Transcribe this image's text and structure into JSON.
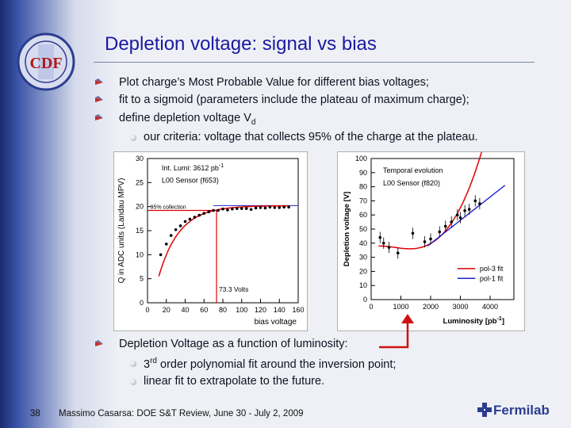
{
  "slide": {
    "title": "Depletion voltage: signal vs bias",
    "logo_text": "CDF",
    "bullets": [
      "Plot charge’s Most Probable Value for different bias voltages;",
      "fit to a sigmoid (parameters include the plateau of maximum charge);",
      "define depletion voltage V"
    ],
    "bullet3_sub": "d",
    "sub_bullet": "our criteria: voltage that collects 95% of the charge at the plateau.",
    "bullet4": "Depletion Voltage as a function of luminosity:",
    "sub_bullet2_sup": "rd",
    "sub_bullet2_a": "3",
    "sub_bullet2_b": " order polynomial fit around the inversion point;",
    "sub_bullet3": "linear fit to extrapolate to the future.",
    "page_number": "38",
    "footer": "Massimo Casarsa: DOE S&T Review, June 30 - July 2, 2009",
    "brand": "Fermilab"
  },
  "colors": {
    "title": "#1a1aa0",
    "fit_red": "#e00000",
    "fit_blue": "#2020d0",
    "line_blue": "#3a3ad0"
  },
  "chart_data": [
    {
      "type": "scatter",
      "title": "",
      "xlabel": "bias voltage",
      "ylabel": "Q in ADC units (Landau MPV)",
      "xlim": [
        0,
        160
      ],
      "ylim": [
        0,
        30
      ],
      "xticks": [
        "0",
        "20",
        "40",
        "60",
        "80",
        "100",
        "120",
        "140",
        "160"
      ],
      "yticks": [
        "0",
        "5",
        "10",
        "15",
        "20",
        "25",
        "30"
      ],
      "annotations": {
        "lumi": "Int. Lumi: 3612 pb",
        "lumi_sup": "-1",
        "sensor": "L00 Sensor (f653)",
        "collection": "95% collection",
        "volts": "73.3 Volts"
      },
      "x": [
        14,
        20,
        25,
        30,
        35,
        40,
        45,
        50,
        55,
        60,
        65,
        70,
        75,
        80,
        85,
        90,
        95,
        100,
        105,
        110,
        115,
        120,
        125,
        130,
        135,
        140,
        145,
        150
      ],
      "y": [
        10.0,
        12.2,
        14.0,
        15.2,
        16.0,
        16.9,
        17.4,
        17.8,
        18.2,
        18.6,
        18.9,
        19.2,
        19.2,
        19.5,
        19.3,
        19.5,
        19.6,
        19.6,
        19.6,
        19.4,
        19.7,
        19.8,
        19.7,
        19.9,
        19.8,
        19.8,
        19.9,
        19.9
      ],
      "plateau": 20.2,
      "threshold_95": 19.2,
      "depletion_voltage": 73.3
    },
    {
      "type": "scatter",
      "title": "Temporal evolution",
      "xlabel": "Luminosity [pb",
      "xlabel_sup": "-1",
      "xlabel_end": "]",
      "ylabel": "Depletion voltage [V]",
      "xlim": [
        0,
        4800
      ],
      "ylim": [
        0,
        100
      ],
      "xticks": [
        "0",
        "1000",
        "2000",
        "3000",
        "4000"
      ],
      "yticks": [
        "0",
        "10",
        "20",
        "30",
        "40",
        "50",
        "60",
        "70",
        "80",
        "90",
        "100"
      ],
      "sensor": "L00 Sensor (f820)",
      "legend": [
        "pol-3 fit",
        "pol-1 fit"
      ],
      "x": [
        300,
        420,
        600,
        900,
        1400,
        1800,
        2000,
        2300,
        2500,
        2700,
        2900,
        3000,
        3150,
        3300,
        3500,
        3650
      ],
      "y": [
        44,
        40,
        37,
        33,
        47,
        41,
        43,
        48,
        52,
        55,
        60,
        58,
        63,
        64,
        70,
        68
      ]
    }
  ]
}
